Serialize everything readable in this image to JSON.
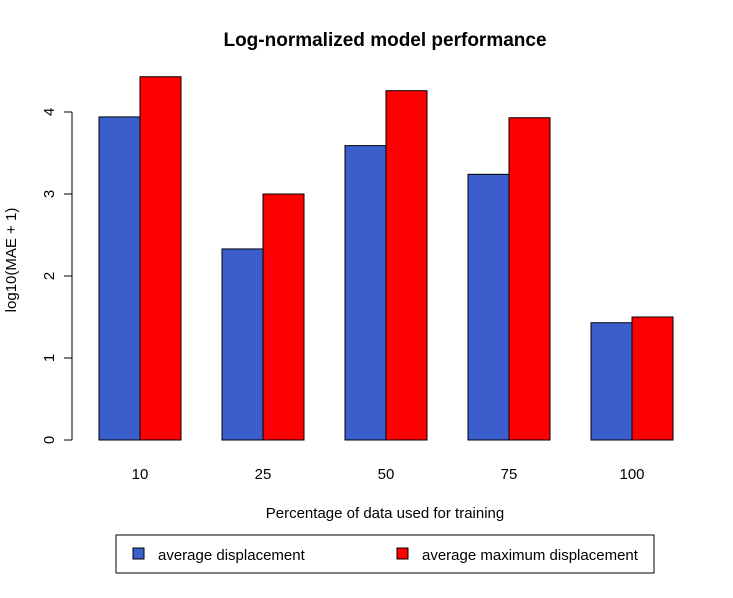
{
  "chart_data": {
    "type": "bar",
    "title": "Log-normalized model performance",
    "xlabel": "Percentage of data used for training",
    "ylabel": "log10(MAE + 1)",
    "categories": [
      "10",
      "25",
      "50",
      "75",
      "100"
    ],
    "ylim": [
      0,
      4.4
    ],
    "yticks": [
      "0",
      "1",
      "2",
      "3",
      "4"
    ],
    "grid": false,
    "legend_position": "bottom",
    "series": [
      {
        "name": "average displacement",
        "color": "#3a5fcd",
        "values": [
          3.94,
          2.33,
          3.59,
          3.24,
          1.43
        ]
      },
      {
        "name": "average maximum displacement",
        "color": "#ff0000",
        "values": [
          4.43,
          3.0,
          4.26,
          3.93,
          1.5
        ]
      }
    ]
  }
}
